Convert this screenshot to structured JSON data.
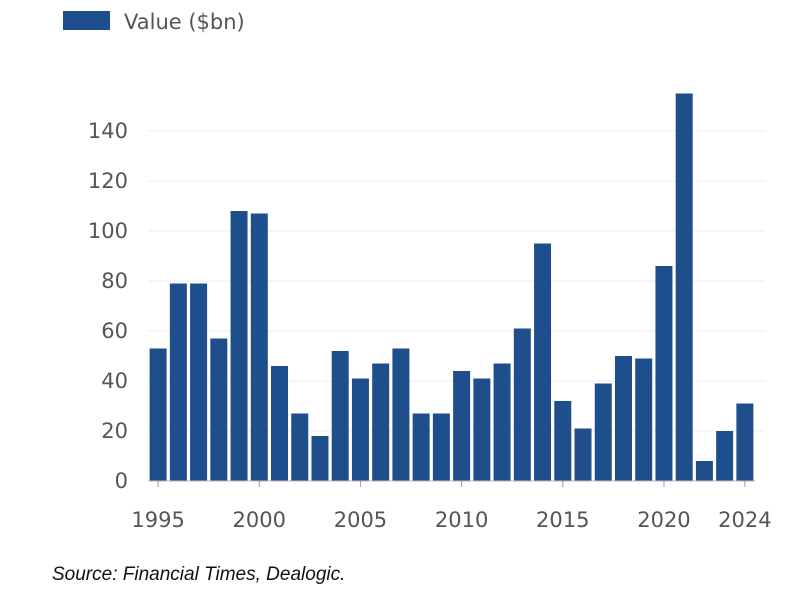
{
  "chart_data": {
    "type": "bar",
    "title": "",
    "xlabel": "",
    "ylabel": "",
    "series": [
      {
        "name": "Value ($bn)",
        "color": "#1f4e8c",
        "x": [
          1995,
          1996,
          1997,
          1998,
          1999,
          2000,
          2001,
          2002,
          2003,
          2004,
          2005,
          2006,
          2007,
          2008,
          2009,
          2010,
          2011,
          2012,
          2013,
          2014,
          2015,
          2016,
          2017,
          2018,
          2019,
          2020,
          2021,
          2022,
          2023,
          2024
        ],
        "values": [
          53,
          79,
          79,
          57,
          108,
          107,
          46,
          27,
          18,
          52,
          41,
          47,
          53,
          27,
          27,
          44,
          41,
          47,
          61,
          95,
          32,
          21,
          39,
          50,
          49,
          86,
          155,
          8,
          20,
          31
        ]
      }
    ],
    "xticks": [
      "1995",
      "2000",
      "2005",
      "2010",
      "2015",
      "2020",
      "2024"
    ],
    "yticks": [
      "0",
      "20",
      "40",
      "60",
      "80",
      "100",
      "120",
      "140"
    ],
    "ylim": [
      0,
      155
    ],
    "grid": "horizontal",
    "legend_position": "top-left"
  },
  "source": "Source: Financial Times, Dealogic."
}
